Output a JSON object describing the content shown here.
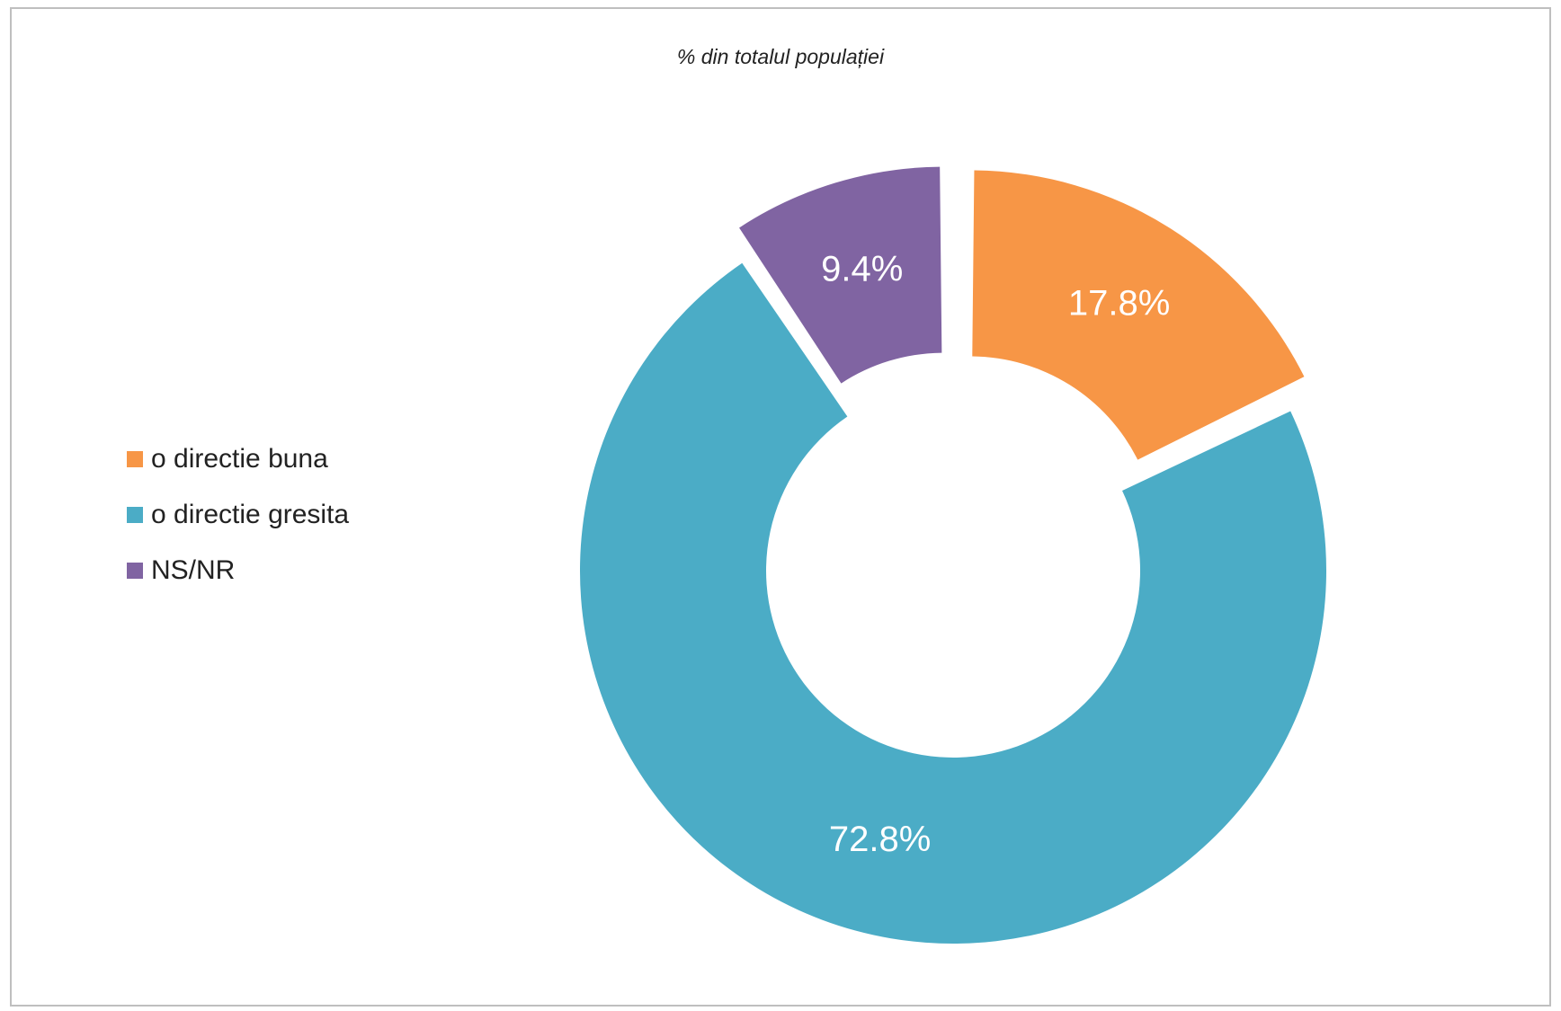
{
  "chart_data": {
    "type": "pie",
    "variant": "donut",
    "title": "% din totalul populației",
    "slices": [
      {
        "label": "o directie buna",
        "value": 17.8,
        "display": "17.8%",
        "color": "#f79646"
      },
      {
        "label": "o directie gresita",
        "value": 72.8,
        "display": "72.8%",
        "color": "#4bacc6"
      },
      {
        "label": "NS/NR",
        "value": 9.4,
        "display": "9.4%",
        "color": "#8064a2"
      }
    ],
    "exploded": true,
    "legend_position": "left"
  }
}
